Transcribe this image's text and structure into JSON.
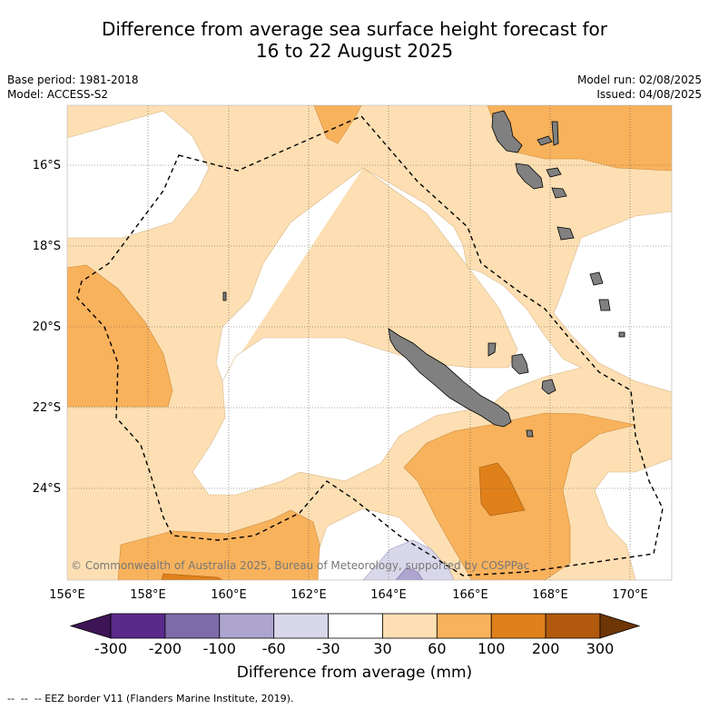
{
  "title_line1": "Difference from average sea surface height forecast for",
  "title_line2": "16 to 22 August 2025",
  "meta": {
    "base_period": "Base period: 1981-2018",
    "model": "Model: ACCESS-S2",
    "model_run": "Model run: 02/08/2025",
    "issued": "Issued: 04/08/2025"
  },
  "map": {
    "lon_ticks": [
      "156°E",
      "158°E",
      "160°E",
      "162°E",
      "164°E",
      "166°E",
      "168°E",
      "170°E"
    ],
    "lat_ticks": [
      "16°S",
      "18°S",
      "20°S",
      "22°S",
      "24°S"
    ],
    "copyright": "© Commonwealth of Australia 2025, Bureau of Meteorology, supported by COSPPac",
    "land_color": "#808080"
  },
  "colorbar": {
    "title": "Difference from average (mm)",
    "labels": [
      "-300",
      "-200",
      "-100",
      "-60",
      "-30",
      "30",
      "60",
      "100",
      "200",
      "300"
    ],
    "colors": [
      "#3d1455",
      "#5a2a8a",
      "#7e6ba9",
      "#aea5cf",
      "#d9d8ea",
      "#ffffff",
      "#fddfb3",
      "#f9b25c",
      "#e0801a",
      "#b15a0d",
      "#6e3505"
    ]
  },
  "footer": "--  --  -- EEZ border V11 (Flanders Marine Institute, 2019)."
}
